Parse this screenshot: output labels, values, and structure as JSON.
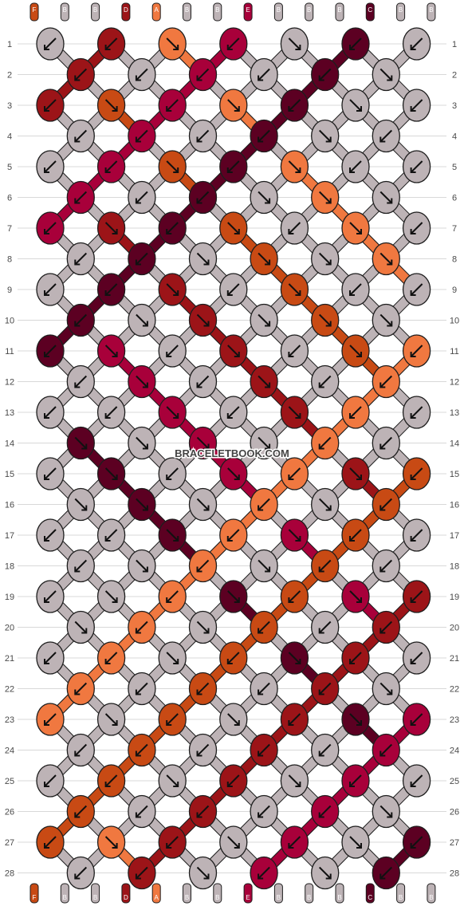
{
  "watermark": "BRACELETBOOK.COM",
  "colors": {
    "B": "#bdb3b6",
    "C": "#5c0022",
    "D": "#9c1418",
    "E": "#a8003a",
    "F": "#c84a14",
    "A": "#f07840",
    "stroke": "#1e1e1e",
    "grid": "#d8d8d8",
    "row_number_color": "#4a4a4a"
  },
  "strand_labels_top": [
    "F",
    "B",
    "B",
    "D",
    "A",
    "B",
    "B",
    "E",
    "B",
    "B",
    "B",
    "C",
    "B",
    "B"
  ],
  "strand_labels_bottom": [
    "F",
    "B",
    "B",
    "D",
    "A",
    "B",
    "B",
    "E",
    "B",
    "B",
    "B",
    "C",
    "B",
    "B"
  ],
  "row_numbers": [
    1,
    2,
    3,
    4,
    5,
    6,
    7,
    8,
    9,
    10,
    11,
    12,
    13,
    14,
    15,
    16,
    17,
    18,
    19,
    20,
    21,
    22,
    23,
    24,
    25,
    26,
    27,
    28
  ],
  "knot_rows": [
    {
      "row": 1,
      "knots": [
        {
          "c": "B",
          "d": "SW"
        },
        {
          "c": "D",
          "d": "SW"
        },
        {
          "c": "A",
          "d": "SE"
        },
        {
          "c": "E",
          "d": "SW"
        },
        {
          "c": "B",
          "d": "SE"
        },
        {
          "c": "C",
          "d": "SW"
        },
        {
          "c": "B",
          "d": "SW"
        }
      ]
    },
    {
      "row": 2,
      "knots": [
        {
          "c": "D",
          "d": "SW"
        },
        {
          "c": "B",
          "d": "SW"
        },
        {
          "c": "E",
          "d": "SW"
        },
        {
          "c": "B",
          "d": "SW"
        },
        {
          "c": "C",
          "d": "SW"
        },
        {
          "c": "B",
          "d": "SE"
        }
      ]
    },
    {
      "row": 3,
      "knots": [
        {
          "c": "D",
          "d": "SW"
        },
        {
          "c": "F",
          "d": "SE"
        },
        {
          "c": "E",
          "d": "SW"
        },
        {
          "c": "A",
          "d": "SE"
        },
        {
          "c": "C",
          "d": "SW"
        },
        {
          "c": "B",
          "d": "SE"
        },
        {
          "c": "B",
          "d": "SW"
        }
      ]
    },
    {
      "row": 4,
      "knots": [
        {
          "c": "B",
          "d": "SW"
        },
        {
          "c": "E",
          "d": "SW"
        },
        {
          "c": "B",
          "d": "SW"
        },
        {
          "c": "C",
          "d": "SW"
        },
        {
          "c": "B",
          "d": "SE"
        },
        {
          "c": "B",
          "d": "SW"
        }
      ]
    },
    {
      "row": 5,
      "knots": [
        {
          "c": "B",
          "d": "SW"
        },
        {
          "c": "E",
          "d": "SW"
        },
        {
          "c": "F",
          "d": "SE"
        },
        {
          "c": "C",
          "d": "SW"
        },
        {
          "c": "A",
          "d": "SE"
        },
        {
          "c": "B",
          "d": "SW"
        },
        {
          "c": "B",
          "d": "SW"
        }
      ]
    },
    {
      "row": 6,
      "knots": [
        {
          "c": "E",
          "d": "SW"
        },
        {
          "c": "B",
          "d": "SW"
        },
        {
          "c": "C",
          "d": "SW"
        },
        {
          "c": "B",
          "d": "SE"
        },
        {
          "c": "A",
          "d": "SE"
        },
        {
          "c": "B",
          "d": "SE"
        }
      ]
    },
    {
      "row": 7,
      "knots": [
        {
          "c": "E",
          "d": "SW"
        },
        {
          "c": "D",
          "d": "SE"
        },
        {
          "c": "C",
          "d": "SW"
        },
        {
          "c": "F",
          "d": "SE"
        },
        {
          "c": "B",
          "d": "SW"
        },
        {
          "c": "A",
          "d": "SE"
        },
        {
          "c": "B",
          "d": "SW"
        }
      ]
    },
    {
      "row": 8,
      "knots": [
        {
          "c": "B",
          "d": "SW"
        },
        {
          "c": "C",
          "d": "SW"
        },
        {
          "c": "B",
          "d": "SE"
        },
        {
          "c": "F",
          "d": "SE"
        },
        {
          "c": "B",
          "d": "SE"
        },
        {
          "c": "A",
          "d": "SE"
        }
      ]
    },
    {
      "row": 9,
      "knots": [
        {
          "c": "B",
          "d": "SW"
        },
        {
          "c": "C",
          "d": "SW"
        },
        {
          "c": "D",
          "d": "SE"
        },
        {
          "c": "B",
          "d": "SW"
        },
        {
          "c": "F",
          "d": "SE"
        },
        {
          "c": "B",
          "d": "SW"
        },
        {
          "c": "B",
          "d": "SW"
        }
      ]
    },
    {
      "row": 10,
      "knots": [
        {
          "c": "C",
          "d": "SW"
        },
        {
          "c": "B",
          "d": "SE"
        },
        {
          "c": "D",
          "d": "SE"
        },
        {
          "c": "B",
          "d": "SE"
        },
        {
          "c": "F",
          "d": "SE"
        },
        {
          "c": "B",
          "d": "SE"
        }
      ]
    },
    {
      "row": 11,
      "knots": [
        {
          "c": "C",
          "d": "SW"
        },
        {
          "c": "E",
          "d": "SE"
        },
        {
          "c": "B",
          "d": "SW"
        },
        {
          "c": "D",
          "d": "SE"
        },
        {
          "c": "B",
          "d": "SW"
        },
        {
          "c": "F",
          "d": "SE"
        },
        {
          "c": "A",
          "d": "SW"
        }
      ]
    },
    {
      "row": 12,
      "knots": [
        {
          "c": "B",
          "d": "SW"
        },
        {
          "c": "E",
          "d": "SE"
        },
        {
          "c": "B",
          "d": "SW"
        },
        {
          "c": "D",
          "d": "SE"
        },
        {
          "c": "B",
          "d": "SW"
        },
        {
          "c": "A",
          "d": "SW"
        }
      ]
    },
    {
      "row": 13,
      "knots": [
        {
          "c": "B",
          "d": "SW"
        },
        {
          "c": "B",
          "d": "SW"
        },
        {
          "c": "E",
          "d": "SE"
        },
        {
          "c": "B",
          "d": "SW"
        },
        {
          "c": "D",
          "d": "SE"
        },
        {
          "c": "A",
          "d": "SW"
        },
        {
          "c": "B",
          "d": "SW"
        }
      ]
    },
    {
      "row": 14,
      "knots": [
        {
          "c": "C",
          "d": "SE"
        },
        {
          "c": "B",
          "d": "SE"
        },
        {
          "c": "E",
          "d": "SE"
        },
        {
          "c": "B",
          "d": "SE"
        },
        {
          "c": "A",
          "d": "SW"
        },
        {
          "c": "B",
          "d": "SW"
        }
      ]
    },
    {
      "row": 15,
      "knots": [
        {
          "c": "B",
          "d": "SW"
        },
        {
          "c": "C",
          "d": "SE"
        },
        {
          "c": "B",
          "d": "SW"
        },
        {
          "c": "E",
          "d": "SE"
        },
        {
          "c": "A",
          "d": "SW"
        },
        {
          "c": "D",
          "d": "SE"
        },
        {
          "c": "F",
          "d": "SW"
        }
      ]
    },
    {
      "row": 16,
      "knots": [
        {
          "c": "B",
          "d": "SE"
        },
        {
          "c": "C",
          "d": "SE"
        },
        {
          "c": "B",
          "d": "SE"
        },
        {
          "c": "A",
          "d": "SW"
        },
        {
          "c": "B",
          "d": "SE"
        },
        {
          "c": "F",
          "d": "SW"
        }
      ]
    },
    {
      "row": 17,
      "knots": [
        {
          "c": "B",
          "d": "SW"
        },
        {
          "c": "B",
          "d": "SW"
        },
        {
          "c": "C",
          "d": "SE"
        },
        {
          "c": "A",
          "d": "SW"
        },
        {
          "c": "E",
          "d": "SE"
        },
        {
          "c": "F",
          "d": "SW"
        },
        {
          "c": "B",
          "d": "SW"
        }
      ]
    },
    {
      "row": 18,
      "knots": [
        {
          "c": "B",
          "d": "SW"
        },
        {
          "c": "B",
          "d": "SE"
        },
        {
          "c": "A",
          "d": "SW"
        },
        {
          "c": "B",
          "d": "SE"
        },
        {
          "c": "F",
          "d": "SW"
        },
        {
          "c": "B",
          "d": "SW"
        }
      ]
    },
    {
      "row": 19,
      "knots": [
        {
          "c": "B",
          "d": "SW"
        },
        {
          "c": "B",
          "d": "SE"
        },
        {
          "c": "A",
          "d": "SW"
        },
        {
          "c": "C",
          "d": "SE"
        },
        {
          "c": "F",
          "d": "SW"
        },
        {
          "c": "E",
          "d": "SE"
        },
        {
          "c": "D",
          "d": "SW"
        }
      ]
    },
    {
      "row": 20,
      "knots": [
        {
          "c": "B",
          "d": "SE"
        },
        {
          "c": "A",
          "d": "SW"
        },
        {
          "c": "B",
          "d": "SE"
        },
        {
          "c": "F",
          "d": "SW"
        },
        {
          "c": "B",
          "d": "SW"
        },
        {
          "c": "D",
          "d": "SW"
        }
      ]
    },
    {
      "row": 21,
      "knots": [
        {
          "c": "B",
          "d": "SW"
        },
        {
          "c": "A",
          "d": "SW"
        },
        {
          "c": "B",
          "d": "SE"
        },
        {
          "c": "F",
          "d": "SW"
        },
        {
          "c": "C",
          "d": "SE"
        },
        {
          "c": "D",
          "d": "SW"
        },
        {
          "c": "B",
          "d": "SW"
        }
      ]
    },
    {
      "row": 22,
      "knots": [
        {
          "c": "A",
          "d": "SW"
        },
        {
          "c": "B",
          "d": "SW"
        },
        {
          "c": "F",
          "d": "SW"
        },
        {
          "c": "B",
          "d": "SW"
        },
        {
          "c": "D",
          "d": "SW"
        },
        {
          "c": "B",
          "d": "SE"
        }
      ]
    },
    {
      "row": 23,
      "knots": [
        {
          "c": "A",
          "d": "SW"
        },
        {
          "c": "B",
          "d": "SE"
        },
        {
          "c": "F",
          "d": "SW"
        },
        {
          "c": "B",
          "d": "SE"
        },
        {
          "c": "D",
          "d": "SW"
        },
        {
          "c": "C",
          "d": "SE"
        },
        {
          "c": "E",
          "d": "SW"
        }
      ]
    },
    {
      "row": 24,
      "knots": [
        {
          "c": "B",
          "d": "SW"
        },
        {
          "c": "F",
          "d": "SW"
        },
        {
          "c": "B",
          "d": "SW"
        },
        {
          "c": "D",
          "d": "SW"
        },
        {
          "c": "B",
          "d": "SW"
        },
        {
          "c": "E",
          "d": "SW"
        }
      ]
    },
    {
      "row": 25,
      "knots": [
        {
          "c": "B",
          "d": "SW"
        },
        {
          "c": "F",
          "d": "SW"
        },
        {
          "c": "B",
          "d": "SE"
        },
        {
          "c": "D",
          "d": "SW"
        },
        {
          "c": "B",
          "d": "SE"
        },
        {
          "c": "E",
          "d": "SW"
        },
        {
          "c": "B",
          "d": "SW"
        }
      ]
    },
    {
      "row": 26,
      "knots": [
        {
          "c": "F",
          "d": "SW"
        },
        {
          "c": "B",
          "d": "SW"
        },
        {
          "c": "D",
          "d": "SW"
        },
        {
          "c": "B",
          "d": "SW"
        },
        {
          "c": "E",
          "d": "SW"
        },
        {
          "c": "B",
          "d": "SE"
        }
      ]
    },
    {
      "row": 27,
      "knots": [
        {
          "c": "F",
          "d": "SW"
        },
        {
          "c": "A",
          "d": "SE"
        },
        {
          "c": "D",
          "d": "SW"
        },
        {
          "c": "B",
          "d": "SE"
        },
        {
          "c": "E",
          "d": "SW"
        },
        {
          "c": "B",
          "d": "SE"
        },
        {
          "c": "C",
          "d": "SW"
        }
      ]
    },
    {
      "row": 28,
      "knots": [
        {
          "c": "B",
          "d": "SW"
        },
        {
          "c": "D",
          "d": "SW"
        },
        {
          "c": "B",
          "d": "SE"
        },
        {
          "c": "E",
          "d": "SW"
        },
        {
          "c": "B",
          "d": "SE"
        },
        {
          "c": "C",
          "d": "SW"
        }
      ]
    }
  ]
}
